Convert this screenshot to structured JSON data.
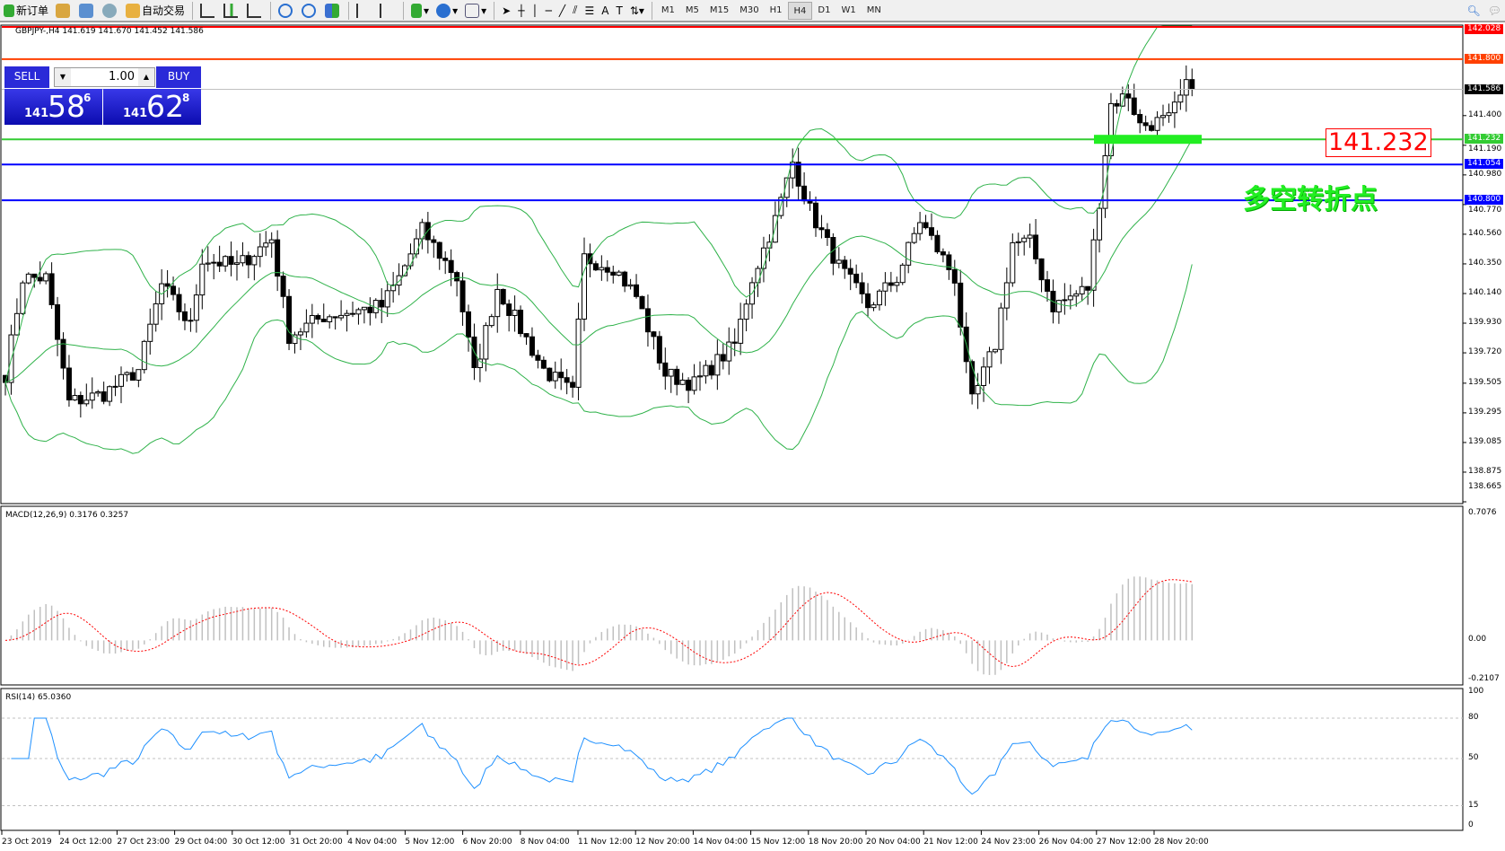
{
  "toolbar": {
    "new_order": "新订单",
    "auto_trading": "自动交易",
    "timeframes": [
      "M1",
      "M5",
      "M15",
      "M30",
      "H1",
      "H4",
      "D1",
      "W1",
      "MN"
    ],
    "active_timeframe": "H4"
  },
  "chart": {
    "header": "GBPJPY-,H4  141.619 141.670 141.452 141.586",
    "trade_panel": {
      "sell": "SELL",
      "buy": "BUY",
      "lot": "1.00",
      "bid_big": "141",
      "bid_mid": "58",
      "bid_pip": "6",
      "ask_big": "141",
      "ask_mid": "62",
      "ask_pip": "8"
    },
    "price_labels": [
      "141.400",
      "141.190",
      "140.980",
      "140.770",
      "140.560",
      "140.350",
      "140.140",
      "139.930",
      "139.720",
      "139.505",
      "139.295",
      "139.085",
      "138.875",
      "138.665"
    ],
    "price_range": [
      138.665,
      142.028
    ],
    "hlines": [
      {
        "price": "142.028",
        "color": "#ff0000"
      },
      {
        "price": "141.800",
        "color": "#ff4000"
      },
      {
        "price": "141.586",
        "color": "#000000",
        "bid": true
      },
      {
        "price": "141.232",
        "color": "#33cc33"
      },
      {
        "price": "141.054",
        "color": "#0000ff"
      },
      {
        "price": "140.800",
        "color": "#0000ff"
      }
    ],
    "annotation_price": "141.232",
    "annotation_text": "多空转折点",
    "price_path": [
      [
        0,
        139.57
      ],
      [
        3,
        140.25
      ],
      [
        7,
        140.25
      ],
      [
        11,
        139.37
      ],
      [
        17,
        139.43
      ],
      [
        23,
        139.6
      ],
      [
        27,
        140.2
      ],
      [
        32,
        139.91
      ],
      [
        34,
        140.39
      ],
      [
        40,
        140.33
      ],
      [
        46,
        140.53
      ],
      [
        49,
        139.84
      ],
      [
        55,
        139.98
      ],
      [
        65,
        140.05
      ],
      [
        68,
        140.25
      ],
      [
        72,
        140.59
      ],
      [
        78,
        140.25
      ],
      [
        81,
        139.57
      ],
      [
        85,
        140.18
      ],
      [
        93,
        139.6
      ],
      [
        98,
        139.43
      ],
      [
        100,
        140.39
      ],
      [
        105,
        140.33
      ],
      [
        109,
        140.12
      ],
      [
        114,
        139.57
      ],
      [
        119,
        139.5
      ],
      [
        126,
        139.78
      ],
      [
        129,
        140.25
      ],
      [
        133,
        140.66
      ],
      [
        136,
        141.07
      ],
      [
        139,
        140.73
      ],
      [
        144,
        140.33
      ],
      [
        149,
        140.05
      ],
      [
        154,
        140.25
      ],
      [
        158,
        140.66
      ],
      [
        164,
        140.25
      ],
      [
        166,
        139.6
      ],
      [
        167,
        139.37
      ],
      [
        171,
        139.78
      ],
      [
        174,
        140.5
      ],
      [
        177,
        140.5
      ],
      [
        181,
        140.05
      ],
      [
        187,
        140.18
      ],
      [
        189,
        140.8
      ],
      [
        191,
        141.48
      ],
      [
        194,
        141.55
      ],
      [
        196,
        141.33
      ],
      [
        201,
        141.37
      ],
      [
        204,
        141.6
      ],
      [
        205,
        141.586
      ]
    ],
    "time_labels": [
      "23 Oct 2019",
      "24 Oct 12:00",
      "27 Oct 23:00",
      "29 Oct 04:00",
      "30 Oct 12:00",
      "31 Oct 20:00",
      "4 Nov 04:00",
      "5 Nov 12:00",
      "6 Nov 20:00",
      "8 Nov 04:00",
      "11 Nov 12:00",
      "12 Nov 20:00",
      "14 Nov 04:00",
      "15 Nov 12:00",
      "18 Nov 20:00",
      "20 Nov 04:00",
      "21 Nov 12:00",
      "24 Nov 23:00",
      "26 Nov 04:00",
      "27 Nov 12:00",
      "28 Nov 20:00"
    ]
  },
  "macd": {
    "header": "MACD(12,26,9) 0.3176 0.3257",
    "max": "0.7076",
    "zero": "0.00",
    "min": "-0.2107"
  },
  "rsi": {
    "header": "RSI(14) 65.0360",
    "levels": [
      "100",
      "80",
      "50",
      "15",
      "0"
    ]
  },
  "colors": {
    "candle_up": "#ffffff",
    "candle_down": "#000000",
    "bands": "#2fb24a",
    "signal": "#ff0000",
    "histogram": "#c0c0c0",
    "rsi": "#1e90ff"
  }
}
